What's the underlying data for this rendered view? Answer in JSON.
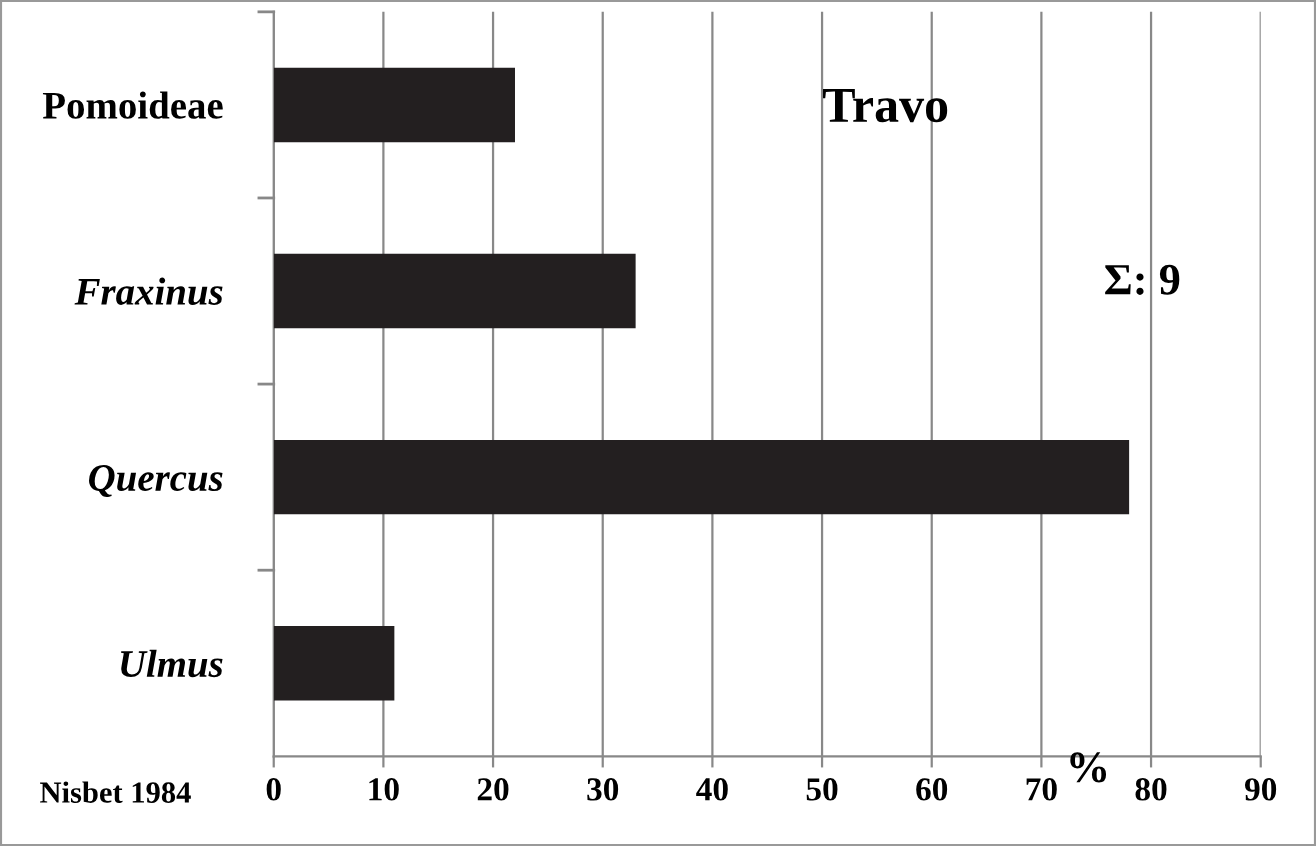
{
  "chart_data": {
    "type": "bar",
    "orientation": "horizontal",
    "title": "Travo",
    "xlabel": "%",
    "categories": [
      "Pomoideae",
      "Fraxinus",
      "Quercus",
      "Ulmus"
    ],
    "values": [
      22,
      33,
      78,
      11
    ],
    "color": "#231f20",
    "xlim": [
      0,
      90
    ],
    "xticks": [
      0,
      10,
      20,
      30,
      40,
      50,
      60,
      70,
      80,
      90
    ],
    "grid": "x",
    "annotations": [
      "Σ: 9",
      "Nisbet 1984"
    ]
  }
}
